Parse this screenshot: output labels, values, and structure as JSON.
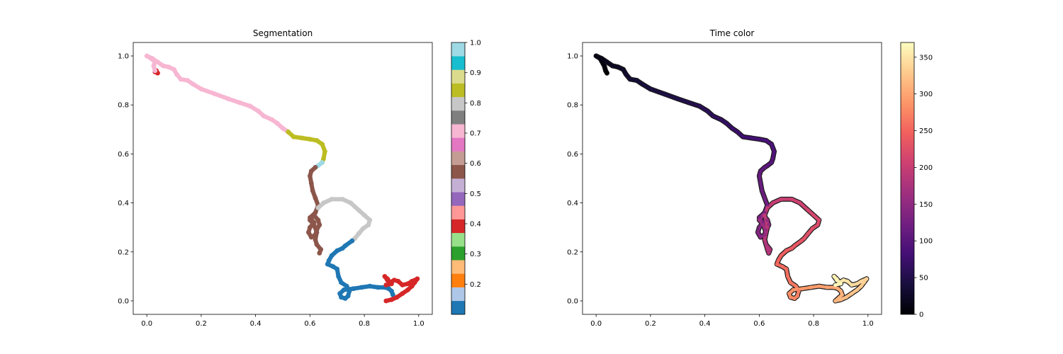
{
  "chart_data": [
    {
      "type": "scatter",
      "title": "Segmentation",
      "xlabel": "",
      "ylabel": "",
      "xlim": [
        -0.05,
        1.05
      ],
      "ylim": [
        -0.055,
        1.055
      ],
      "xticks": [
        0.0,
        0.2,
        0.4,
        0.6,
        0.8,
        1.0
      ],
      "xtick_labels": [
        "0.0",
        "0.2",
        "0.4",
        "0.6",
        "0.8",
        "1.0"
      ],
      "yticks": [
        0.0,
        0.2,
        0.4,
        0.6,
        0.8,
        1.0
      ],
      "ytick_labels": [
        "0.0",
        "0.2",
        "0.4",
        "0.6",
        "0.8",
        "1.0"
      ],
      "grid": false,
      "colorbar": {
        "colormap": "tab20",
        "range": [
          0.1,
          1.0
        ],
        "ticks": [
          0.2,
          0.3,
          0.4,
          0.5,
          0.6,
          0.7,
          0.8,
          0.9,
          1.0
        ],
        "tick_labels": [
          "0.2",
          "0.3",
          "0.4",
          "0.5",
          "0.6",
          "0.7",
          "0.8",
          "0.9",
          "1.0"
        ],
        "colors": [
          "#1f77b4",
          "#aec7e8",
          "#ff7f0e",
          "#ffbb78",
          "#2ca02c",
          "#98df8a",
          "#d62728",
          "#ff9896",
          "#9467bd",
          "#c5b0d5",
          "#8c564b",
          "#c49c94",
          "#e377c2",
          "#f7b6d2",
          "#7f7f7f",
          "#c7c7c7",
          "#bcbd22",
          "#dbdb8d",
          "#17becf",
          "#9edae5"
        ]
      },
      "segments": [
        {
          "color": "#d62728",
          "points": [
            [
              0.04,
              0.93
            ],
            [
              0.03,
              0.935
            ],
            [
              0.035,
              0.94
            ]
          ]
        },
        {
          "color": "#f7b6d2",
          "points": [
            [
              0.03,
              0.94
            ],
            [
              0.025,
              0.96
            ],
            [
              0.03,
              0.975
            ],
            [
              0.015,
              0.99
            ],
            [
              0.0,
              1.0
            ],
            [
              0.02,
              0.99
            ],
            [
              0.04,
              0.975
            ],
            [
              0.06,
              0.96
            ],
            [
              0.08,
              0.955
            ],
            [
              0.1,
              0.945
            ],
            [
              0.11,
              0.925
            ],
            [
              0.125,
              0.905
            ],
            [
              0.15,
              0.9
            ],
            [
              0.17,
              0.885
            ],
            [
              0.2,
              0.865
            ],
            [
              0.25,
              0.845
            ],
            [
              0.3,
              0.825
            ],
            [
              0.34,
              0.81
            ],
            [
              0.38,
              0.795
            ],
            [
              0.41,
              0.775
            ],
            [
              0.43,
              0.755
            ],
            [
              0.46,
              0.74
            ],
            [
              0.48,
              0.725
            ],
            [
              0.5,
              0.705
            ],
            [
              0.52,
              0.69
            ]
          ]
        },
        {
          "color": "#bcbd22",
          "points": [
            [
              0.52,
              0.69
            ],
            [
              0.54,
              0.67
            ],
            [
              0.57,
              0.665
            ],
            [
              0.6,
              0.66
            ],
            [
              0.625,
              0.655
            ],
            [
              0.645,
              0.64
            ],
            [
              0.655,
              0.61
            ],
            [
              0.65,
              0.58
            ],
            [
              0.645,
              0.565
            ]
          ]
        },
        {
          "color": "#9edae5",
          "points": [
            [
              0.645,
              0.565
            ],
            [
              0.63,
              0.552
            ],
            [
              0.62,
              0.545
            ]
          ]
        },
        {
          "color": "#8c564b",
          "points": [
            [
              0.62,
              0.545
            ],
            [
              0.605,
              0.53
            ],
            [
              0.6,
              0.51
            ],
            [
              0.605,
              0.48
            ],
            [
              0.61,
              0.45
            ],
            [
              0.62,
              0.42
            ],
            [
              0.63,
              0.39
            ],
            [
              0.62,
              0.36
            ],
            [
              0.6,
              0.34
            ],
            [
              0.615,
              0.32
            ],
            [
              0.6,
              0.3
            ],
            [
              0.595,
              0.28
            ],
            [
              0.605,
              0.26
            ],
            [
              0.62,
              0.27
            ],
            [
              0.625,
              0.29
            ],
            [
              0.635,
              0.31
            ],
            [
              0.63,
              0.33
            ],
            [
              0.615,
              0.35
            ],
            [
              0.6,
              0.33
            ],
            [
              0.615,
              0.31
            ],
            [
              0.625,
              0.28
            ],
            [
              0.62,
              0.25
            ],
            [
              0.625,
              0.23
            ],
            [
              0.64,
              0.21
            ],
            [
              0.635,
              0.195
            ]
          ]
        },
        {
          "color": "#c7c7c7",
          "points": [
            [
              0.63,
              0.38
            ],
            [
              0.65,
              0.4
            ],
            [
              0.68,
              0.415
            ],
            [
              0.72,
              0.415
            ],
            [
              0.75,
              0.4
            ],
            [
              0.78,
              0.37
            ],
            [
              0.8,
              0.35
            ],
            [
              0.82,
              0.33
            ],
            [
              0.815,
              0.31
            ],
            [
              0.795,
              0.295
            ],
            [
              0.78,
              0.275
            ],
            [
              0.765,
              0.255
            ],
            [
              0.755,
              0.245
            ]
          ]
        },
        {
          "color": "#1f77b4",
          "points": [
            [
              0.755,
              0.245
            ],
            [
              0.73,
              0.225
            ],
            [
              0.72,
              0.215
            ],
            [
              0.7,
              0.205
            ],
            [
              0.68,
              0.185
            ],
            [
              0.67,
              0.165
            ],
            [
              0.665,
              0.15
            ],
            [
              0.685,
              0.14
            ],
            [
              0.7,
              0.13
            ],
            [
              0.705,
              0.1
            ],
            [
              0.715,
              0.075
            ],
            [
              0.735,
              0.06
            ],
            [
              0.745,
              0.04
            ],
            [
              0.74,
              0.02
            ],
            [
              0.73,
              0.01
            ],
            [
              0.715,
              0.015
            ],
            [
              0.71,
              0.03
            ],
            [
              0.725,
              0.045
            ],
            [
              0.76,
              0.05
            ],
            [
              0.79,
              0.055
            ],
            [
              0.82,
              0.06
            ],
            [
              0.85,
              0.055
            ],
            [
              0.875,
              0.055
            ],
            [
              0.89,
              0.05
            ],
            [
              0.9,
              0.04
            ],
            [
              0.905,
              0.025
            ]
          ]
        },
        {
          "color": "#d62728",
          "points": [
            [
              0.88,
              0.0
            ],
            [
              0.9,
              0.005
            ],
            [
              0.92,
              0.015
            ],
            [
              0.94,
              0.03
            ],
            [
              0.96,
              0.045
            ],
            [
              0.975,
              0.06
            ],
            [
              0.985,
              0.075
            ],
            [
              0.995,
              0.09
            ],
            [
              0.975,
              0.08
            ],
            [
              0.96,
              0.07
            ],
            [
              0.94,
              0.065
            ],
            [
              0.925,
              0.08
            ],
            [
              0.91,
              0.085
            ],
            [
              0.895,
              0.075
            ],
            [
              0.885,
              0.09
            ],
            [
              0.875,
              0.1
            ],
            [
              0.885,
              0.085
            ],
            [
              0.9,
              0.07
            ],
            [
              0.88,
              0.065
            ]
          ]
        }
      ]
    },
    {
      "type": "scatter",
      "title": "Time color",
      "xlabel": "",
      "ylabel": "",
      "xlim": [
        -0.05,
        1.05
      ],
      "ylim": [
        -0.055,
        1.055
      ],
      "xticks": [
        0.0,
        0.2,
        0.4,
        0.6,
        0.8,
        1.0
      ],
      "xtick_labels": [
        "0.0",
        "0.2",
        "0.4",
        "0.6",
        "0.8",
        "1.0"
      ],
      "yticks": [
        0.0,
        0.2,
        0.4,
        0.6,
        0.8,
        1.0
      ],
      "ytick_labels": [
        "0.0",
        "0.2",
        "0.4",
        "0.6",
        "0.8",
        "1.0"
      ],
      "grid": false,
      "colorbar": {
        "colormap": "magma",
        "range": [
          0,
          370
        ],
        "ticks": [
          0,
          50,
          100,
          150,
          200,
          250,
          300,
          350
        ],
        "tick_labels": [
          "0",
          "50",
          "100",
          "150",
          "200",
          "250",
          "300",
          "350"
        ],
        "stops": [
          "#000004",
          "#180f3d",
          "#440f76",
          "#721f81",
          "#9e2f7f",
          "#cd4071",
          "#f1605d",
          "#fd9668",
          "#feca8d",
          "#fcfdbf"
        ]
      },
      "path_points": [
        [
          0.04,
          0.93
        ],
        [
          0.035,
          0.94
        ],
        [
          0.03,
          0.96
        ],
        [
          0.015,
          0.99
        ],
        [
          0.0,
          1.0
        ],
        [
          0.02,
          0.99
        ],
        [
          0.04,
          0.975
        ],
        [
          0.06,
          0.96
        ],
        [
          0.08,
          0.955
        ],
        [
          0.1,
          0.945
        ],
        [
          0.11,
          0.925
        ],
        [
          0.125,
          0.905
        ],
        [
          0.15,
          0.9
        ],
        [
          0.17,
          0.885
        ],
        [
          0.2,
          0.865
        ],
        [
          0.25,
          0.845
        ],
        [
          0.3,
          0.825
        ],
        [
          0.34,
          0.81
        ],
        [
          0.38,
          0.795
        ],
        [
          0.41,
          0.775
        ],
        [
          0.43,
          0.755
        ],
        [
          0.46,
          0.74
        ],
        [
          0.48,
          0.725
        ],
        [
          0.5,
          0.705
        ],
        [
          0.52,
          0.69
        ],
        [
          0.54,
          0.67
        ],
        [
          0.57,
          0.665
        ],
        [
          0.6,
          0.66
        ],
        [
          0.625,
          0.655
        ],
        [
          0.645,
          0.64
        ],
        [
          0.655,
          0.61
        ],
        [
          0.65,
          0.58
        ],
        [
          0.645,
          0.565
        ],
        [
          0.63,
          0.552
        ],
        [
          0.62,
          0.545
        ],
        [
          0.605,
          0.53
        ],
        [
          0.6,
          0.51
        ],
        [
          0.605,
          0.48
        ],
        [
          0.61,
          0.45
        ],
        [
          0.62,
          0.42
        ],
        [
          0.63,
          0.39
        ],
        [
          0.62,
          0.36
        ],
        [
          0.6,
          0.34
        ],
        [
          0.615,
          0.32
        ],
        [
          0.6,
          0.3
        ],
        [
          0.595,
          0.28
        ],
        [
          0.605,
          0.26
        ],
        [
          0.62,
          0.27
        ],
        [
          0.625,
          0.29
        ],
        [
          0.635,
          0.31
        ],
        [
          0.63,
          0.33
        ],
        [
          0.615,
          0.35
        ],
        [
          0.6,
          0.33
        ],
        [
          0.615,
          0.31
        ],
        [
          0.625,
          0.28
        ],
        [
          0.62,
          0.25
        ],
        [
          0.625,
          0.23
        ],
        [
          0.64,
          0.21
        ],
        [
          0.635,
          0.195
        ],
        [
          0.63,
          0.21
        ],
        [
          0.62,
          0.25
        ],
        [
          0.63,
          0.3
        ],
        [
          0.62,
          0.35
        ],
        [
          0.63,
          0.38
        ],
        [
          0.65,
          0.4
        ],
        [
          0.68,
          0.415
        ],
        [
          0.72,
          0.415
        ],
        [
          0.75,
          0.4
        ],
        [
          0.78,
          0.37
        ],
        [
          0.8,
          0.35
        ],
        [
          0.82,
          0.33
        ],
        [
          0.815,
          0.31
        ],
        [
          0.795,
          0.295
        ],
        [
          0.78,
          0.275
        ],
        [
          0.765,
          0.255
        ],
        [
          0.755,
          0.245
        ],
        [
          0.73,
          0.225
        ],
        [
          0.72,
          0.215
        ],
        [
          0.7,
          0.205
        ],
        [
          0.68,
          0.185
        ],
        [
          0.67,
          0.165
        ],
        [
          0.665,
          0.15
        ],
        [
          0.685,
          0.14
        ],
        [
          0.7,
          0.13
        ],
        [
          0.705,
          0.1
        ],
        [
          0.715,
          0.075
        ],
        [
          0.735,
          0.06
        ],
        [
          0.745,
          0.04
        ],
        [
          0.74,
          0.02
        ],
        [
          0.73,
          0.01
        ],
        [
          0.715,
          0.015
        ],
        [
          0.71,
          0.03
        ],
        [
          0.725,
          0.045
        ],
        [
          0.76,
          0.05
        ],
        [
          0.79,
          0.055
        ],
        [
          0.82,
          0.06
        ],
        [
          0.85,
          0.055
        ],
        [
          0.875,
          0.055
        ],
        [
          0.89,
          0.05
        ],
        [
          0.9,
          0.04
        ],
        [
          0.905,
          0.025
        ],
        [
          0.88,
          0.0
        ],
        [
          0.9,
          0.005
        ],
        [
          0.92,
          0.015
        ],
        [
          0.94,
          0.03
        ],
        [
          0.96,
          0.045
        ],
        [
          0.975,
          0.06
        ],
        [
          0.985,
          0.075
        ],
        [
          0.995,
          0.09
        ],
        [
          0.975,
          0.08
        ],
        [
          0.96,
          0.07
        ],
        [
          0.94,
          0.065
        ],
        [
          0.925,
          0.08
        ],
        [
          0.91,
          0.085
        ],
        [
          0.895,
          0.075
        ],
        [
          0.885,
          0.09
        ],
        [
          0.875,
          0.1
        ],
        [
          0.885,
          0.085
        ],
        [
          0.9,
          0.07
        ],
        [
          0.88,
          0.065
        ]
      ]
    }
  ]
}
